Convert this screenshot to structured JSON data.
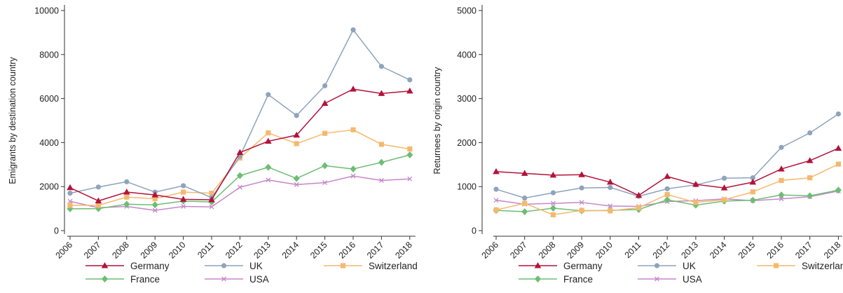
{
  "colors": {
    "Germany": "#b3123a",
    "UK": "#8ea3bd",
    "Switzerland": "#f4b96e",
    "France": "#6dbd73",
    "USA": "#c587c9"
  },
  "markers": {
    "Germany": "triangle",
    "UK": "circle",
    "Switzerland": "square",
    "France": "diamond",
    "USA": "x"
  },
  "chart_data": [
    {
      "type": "line",
      "ylabel": "Emigrants by destination country",
      "xlabel": "",
      "x": [
        "2006",
        "2007",
        "2008",
        "2009",
        "2010",
        "2011",
        "2012",
        "2013",
        "2014",
        "2015",
        "2016",
        "2017",
        "2018"
      ],
      "ylim": [
        0,
        10000
      ],
      "yticks": [
        0,
        2000,
        4000,
        6000,
        8000,
        10000
      ],
      "grid": false,
      "legend_position": "bottom",
      "series": [
        {
          "name": "Germany",
          "values": [
            1950,
            1350,
            1750,
            1620,
            1420,
            1400,
            3550,
            4060,
            4340,
            5780,
            6430,
            6230,
            6340
          ]
        },
        {
          "name": "UK",
          "values": [
            1700,
            1980,
            2220,
            1750,
            2040,
            1500,
            3380,
            6180,
            5230,
            6580,
            9120,
            7460,
            6850
          ]
        },
        {
          "name": "Switzerland",
          "values": [
            1150,
            1150,
            1520,
            1450,
            1750,
            1700,
            3300,
            4440,
            3950,
            4420,
            4580,
            3920,
            3710
          ]
        },
        {
          "name": "France",
          "values": [
            990,
            1000,
            1200,
            1170,
            1340,
            1300,
            2500,
            2880,
            2370,
            2950,
            2800,
            3100,
            3440
          ]
        },
        {
          "name": "USA",
          "values": [
            1330,
            1040,
            1100,
            920,
            1100,
            1080,
            1970,
            2300,
            2090,
            2180,
            2480,
            2280,
            2350
          ]
        }
      ]
    },
    {
      "type": "line",
      "ylabel": "Returnees by origin country",
      "xlabel": "",
      "x": [
        "2006",
        "2007",
        "2008",
        "2009",
        "2010",
        "2011",
        "2012",
        "2013",
        "2014",
        "2015",
        "2016",
        "2017",
        "2018"
      ],
      "ylim": [
        0,
        5000
      ],
      "yticks": [
        0,
        1000,
        2000,
        3000,
        4000,
        5000
      ],
      "grid": false,
      "legend_position": "bottom",
      "series": [
        {
          "name": "Germany",
          "values": [
            1340,
            1300,
            1260,
            1270,
            1100,
            800,
            1230,
            1050,
            970,
            1100,
            1400,
            1590,
            1870
          ]
        },
        {
          "name": "UK",
          "values": [
            940,
            740,
            860,
            970,
            980,
            780,
            950,
            1040,
            1190,
            1200,
            1890,
            2220,
            2650
          ]
        },
        {
          "name": "Switzerland",
          "values": [
            470,
            620,
            360,
            460,
            450,
            520,
            820,
            640,
            700,
            880,
            1140,
            1200,
            1510
          ]
        },
        {
          "name": "France",
          "values": [
            460,
            430,
            510,
            450,
            460,
            480,
            700,
            580,
            670,
            690,
            810,
            790,
            920
          ]
        },
        {
          "name": "USA",
          "values": [
            690,
            600,
            620,
            640,
            560,
            550,
            660,
            680,
            720,
            680,
            720,
            770,
            900
          ]
        }
      ]
    }
  ]
}
